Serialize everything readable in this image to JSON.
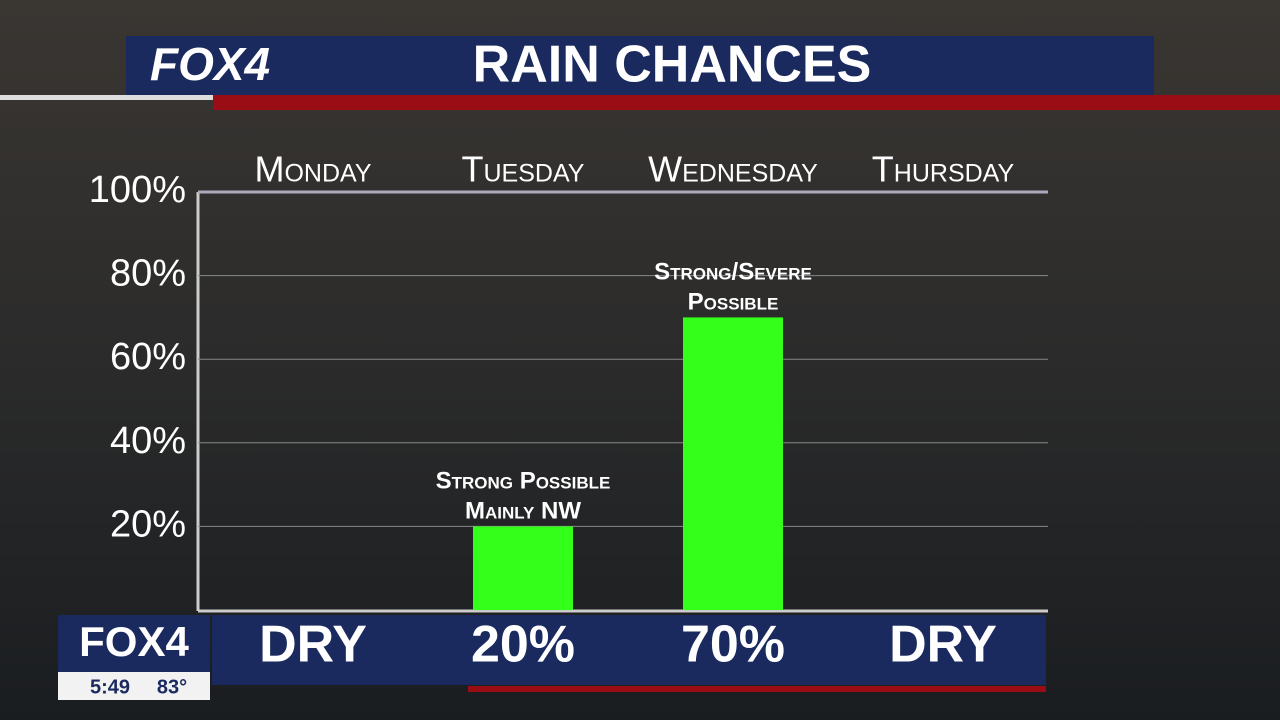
{
  "brand": {
    "logo": "FOX4",
    "time": "5:49",
    "temperature": "83°"
  },
  "chart_data": {
    "type": "bar",
    "title": "RAIN CHANCES",
    "categories": [
      "Monday",
      "Tuesday",
      "Wednesday",
      "Thursday"
    ],
    "values": [
      0,
      20,
      70,
      0
    ],
    "value_labels": [
      "DRY",
      "20%",
      "70%",
      "DRY"
    ],
    "color": "#33ff1a",
    "ylim": [
      0,
      100
    ],
    "yticks": [
      {
        "value": 20,
        "label": "20%"
      },
      {
        "value": 40,
        "label": "40%"
      },
      {
        "value": 60,
        "label": "60%"
      },
      {
        "value": 80,
        "label": "80%"
      },
      {
        "value": 100,
        "label": "100%"
      }
    ],
    "grid": true,
    "annotations": [
      {
        "category": 1,
        "lines": [
          "Strong Possible",
          "Mainly NW"
        ]
      },
      {
        "category": 2,
        "lines": [
          "Strong/Severe",
          "Possible"
        ]
      }
    ]
  }
}
